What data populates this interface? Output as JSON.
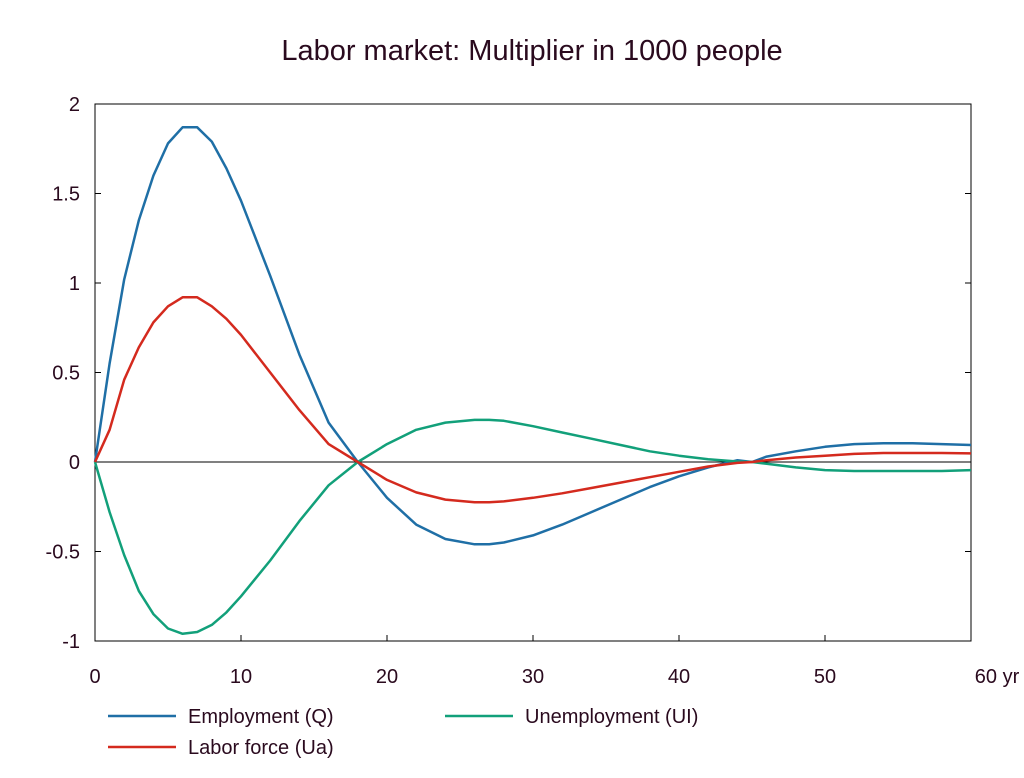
{
  "chart_data": {
    "type": "line",
    "title": "Labor market: Multiplier in 1000 people",
    "xlabel": "",
    "ylabel": "",
    "xlim": [
      0,
      60
    ],
    "ylim": [
      -1,
      2
    ],
    "x_ticks": [
      0,
      10,
      20,
      30,
      40,
      50,
      60
    ],
    "x_tick_labels": [
      "0",
      "10",
      "20",
      "30",
      "40",
      "50",
      "60 yr"
    ],
    "y_ticks": [
      2,
      1.5,
      1,
      0.5,
      0,
      -0.5,
      -1
    ],
    "y_tick_labels": [
      "2",
      "1.5",
      "1",
      "0.5",
      "0",
      "-0.5",
      "-1"
    ],
    "grid": false,
    "legend": "bottom",
    "series": [
      {
        "name": "Employment (Q)",
        "color": "#1f6fa6",
        "x": [
          0,
          1,
          2,
          3,
          4,
          5,
          6,
          7,
          8,
          9,
          10,
          12,
          14,
          16,
          18,
          20,
          22,
          24,
          26,
          27,
          28,
          30,
          32,
          34,
          36,
          38,
          40,
          42,
          44,
          45,
          46,
          48,
          50,
          52,
          54,
          56,
          58,
          60
        ],
        "y": [
          0,
          0.55,
          1.02,
          1.35,
          1.6,
          1.78,
          1.87,
          1.87,
          1.79,
          1.64,
          1.46,
          1.04,
          0.6,
          0.22,
          0.0,
          -0.2,
          -0.35,
          -0.43,
          -0.46,
          -0.46,
          -0.45,
          -0.41,
          -0.35,
          -0.28,
          -0.21,
          -0.14,
          -0.08,
          -0.03,
          0.01,
          0.0,
          0.03,
          0.06,
          0.085,
          0.1,
          0.105,
          0.105,
          0.1,
          0.095
        ]
      },
      {
        "name": "Unemployment (UI)",
        "color": "#12a07a",
        "x": [
          0,
          1,
          2,
          3,
          4,
          5,
          6,
          7,
          8,
          9,
          10,
          12,
          14,
          16,
          18,
          20,
          22,
          24,
          26,
          27,
          28,
          30,
          32,
          34,
          36,
          38,
          40,
          42,
          44,
          45,
          46,
          48,
          50,
          52,
          54,
          56,
          58,
          60
        ],
        "y": [
          0,
          -0.28,
          -0.52,
          -0.72,
          -0.85,
          -0.93,
          -0.96,
          -0.95,
          -0.91,
          -0.84,
          -0.75,
          -0.55,
          -0.33,
          -0.13,
          0.0,
          0.1,
          0.18,
          0.22,
          0.235,
          0.235,
          0.23,
          0.2,
          0.165,
          0.13,
          0.095,
          0.06,
          0.035,
          0.015,
          0.003,
          0.0,
          -0.01,
          -0.03,
          -0.045,
          -0.05,
          -0.05,
          -0.05,
          -0.05,
          -0.045
        ]
      },
      {
        "name": "Labor force (Ua)",
        "color": "#d42a1e",
        "x": [
          0,
          1,
          2,
          3,
          4,
          5,
          6,
          7,
          8,
          9,
          10,
          12,
          14,
          16,
          18,
          20,
          22,
          24,
          26,
          27,
          28,
          30,
          32,
          34,
          36,
          38,
          40,
          42,
          44,
          45,
          46,
          48,
          50,
          52,
          54,
          56,
          58,
          60
        ],
        "y": [
          0,
          0.18,
          0.46,
          0.64,
          0.78,
          0.87,
          0.92,
          0.92,
          0.87,
          0.8,
          0.71,
          0.5,
          0.29,
          0.1,
          0.0,
          -0.1,
          -0.17,
          -0.21,
          -0.225,
          -0.225,
          -0.22,
          -0.2,
          -0.175,
          -0.145,
          -0.115,
          -0.085,
          -0.055,
          -0.025,
          -0.005,
          0.0,
          0.01,
          0.025,
          0.035,
          0.045,
          0.05,
          0.05,
          0.05,
          0.048
        ]
      }
    ],
    "legend_order": [
      0,
      2,
      1
    ]
  }
}
